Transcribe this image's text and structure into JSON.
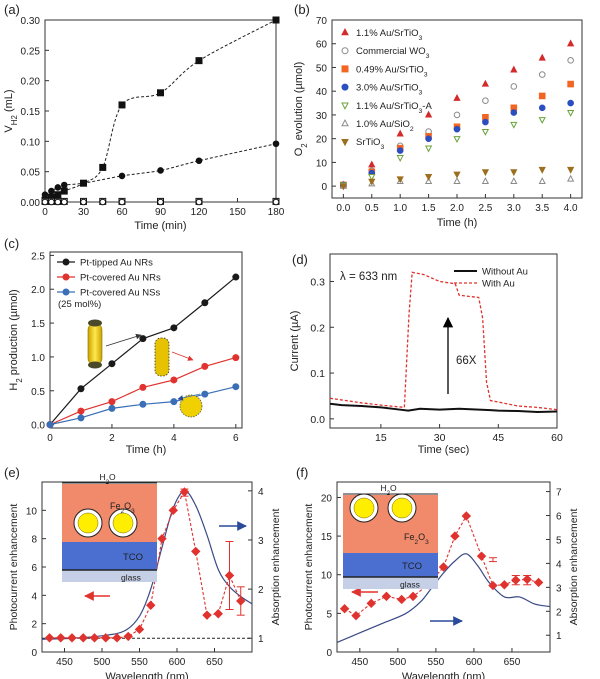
{
  "chart_data": [
    {
      "id": "a",
      "panel_label": "(a)",
      "type": "scatter",
      "xlabel": "Time (min)",
      "ylabel_main": "V",
      "ylabel_sub": "H2",
      "ylabel_unit": " (mL)",
      "xlim": [
        0,
        180
      ],
      "ylim": [
        0,
        0.3
      ],
      "xticks": [
        0,
        30,
        60,
        90,
        120,
        150,
        180
      ],
      "yticks": [
        0.0,
        0.05,
        0.1,
        0.15,
        0.2,
        0.25,
        0.3
      ],
      "ytick_labels": [
        "0.00",
        "0.05",
        "0.10",
        "0.15",
        "0.20",
        "0.25",
        "0.30"
      ],
      "series": [
        {
          "name": "squares",
          "marker": "square",
          "filled": true,
          "dashed": true,
          "x": [
            0,
            5,
            10,
            15,
            30,
            45,
            60,
            90,
            120,
            180
          ],
          "y": [
            0.003,
            0.008,
            0.012,
            0.018,
            0.031,
            0.057,
            0.16,
            0.18,
            0.233,
            0.3
          ]
        },
        {
          "name": "circles",
          "marker": "circle",
          "filled": true,
          "dashed": true,
          "x": [
            0,
            5,
            10,
            15,
            30,
            60,
            90,
            120,
            180
          ],
          "y": [
            0.012,
            0.018,
            0.024,
            0.028,
            0.031,
            0.043,
            0.052,
            0.068,
            0.096
          ]
        },
        {
          "name": "open squares",
          "marker": "square",
          "filled": false,
          "dashed": false,
          "x": [
            0,
            5,
            10,
            15,
            30,
            45,
            60,
            90,
            120,
            180
          ],
          "y": [
            0.001,
            0.001,
            0.001,
            0.001,
            0.001,
            0.001,
            0.001,
            0.001,
            0.001,
            0.001
          ]
        },
        {
          "name": "open circles",
          "marker": "circle",
          "filled": false,
          "dashed": false,
          "x": [
            0,
            5,
            10,
            15,
            30,
            45,
            60,
            90,
            120,
            180
          ],
          "y": [
            0.0,
            0.0,
            0.0,
            0.0,
            0.0,
            0.0,
            0.0,
            0.0,
            0.0,
            0.0
          ]
        }
      ]
    },
    {
      "id": "b",
      "panel_label": "(b)",
      "type": "scatter",
      "xlabel": "Time (h)",
      "ylabel_main": "O",
      "ylabel_sub": "2",
      "ylabel_unit": " evolution (µmol)",
      "xlim": [
        -0.2,
        4.2
      ],
      "ylim": [
        -5,
        70
      ],
      "xticks": [
        0.0,
        0.5,
        1.0,
        1.5,
        2.0,
        2.5,
        3.0,
        3.5,
        4.0
      ],
      "xtick_labels": [
        "0.0",
        "0.5",
        "1.0",
        "1.5",
        "2.0",
        "2.5",
        "3.0",
        "3.5",
        "4.0"
      ],
      "yticks": [
        0,
        10,
        20,
        30,
        40,
        50,
        60,
        70
      ],
      "x": [
        0.0,
        0.5,
        1.0,
        1.5,
        2.0,
        2.5,
        3.0,
        3.5,
        4.0
      ],
      "series": [
        {
          "name": "1.1% Au/SrTiO",
          "sub": "3",
          "suffix": "",
          "marker": "triangle-up",
          "color": "#d42a2a",
          "filled": true,
          "values": [
            0.5,
            9,
            22,
            30,
            37,
            43,
            49,
            54,
            60
          ]
        },
        {
          "name": "Commercial WO",
          "sub": "3",
          "suffix": "",
          "marker": "circle",
          "color": "#8a8a8a",
          "filled": false,
          "values": [
            0.5,
            6.5,
            17,
            23,
            30,
            36,
            42,
            47,
            53
          ]
        },
        {
          "name": "0.49% Au/SrTiO",
          "sub": "3",
          "suffix": "",
          "marker": "square",
          "color": "#f26522",
          "filled": true,
          "values": [
            0.5,
            6,
            16,
            21,
            25,
            29,
            33,
            38,
            43
          ]
        },
        {
          "name": "3.0% Au/SrTiO",
          "sub": "3",
          "suffix": "",
          "marker": "circle",
          "color": "#2b4fbf",
          "filled": true,
          "values": [
            0.5,
            5.5,
            15,
            20,
            24,
            27,
            31,
            33,
            35
          ]
        },
        {
          "name": "1.1% Au/SrTiO",
          "sub": "3",
          "suffix": "-A",
          "marker": "triangle-down",
          "color": "#6aa33a",
          "filled": false,
          "values": [
            0.5,
            4,
            12,
            16,
            20,
            23,
            26,
            28,
            31
          ]
        },
        {
          "name": "1.0% Au/SiO",
          "sub": "2",
          "suffix": "",
          "marker": "triangle-up",
          "color": "#8a8a8a",
          "filled": false,
          "values": [
            0,
            1,
            2,
            2,
            2,
            2,
            2,
            2,
            3
          ]
        },
        {
          "name": "SrTiO",
          "sub": "3",
          "suffix": "",
          "marker": "triangle-down",
          "color": "#9c6f1e",
          "filled": true,
          "values": [
            0,
            2,
            3,
            4,
            5,
            6,
            6,
            7,
            7
          ]
        }
      ]
    },
    {
      "id": "c",
      "panel_label": "(c)",
      "type": "line",
      "xlabel": "Time (h)",
      "ylabel_main": "H",
      "ylabel_sub": "2",
      "ylabel_unit": " production (µmol)",
      "xlim": [
        0,
        6.2
      ],
      "ylim": [
        -0.05,
        2.55
      ],
      "xticks": [
        0,
        2,
        4,
        6
      ],
      "yticks": [
        0.0,
        0.5,
        1.0,
        1.5,
        2.0,
        2.5
      ],
      "ytick_labels": [
        "0.0",
        "0.5",
        "1.0",
        "1.5",
        "2.0",
        "2.5"
      ],
      "x": [
        0,
        1,
        2,
        3,
        4,
        5,
        6
      ],
      "note": "(25 mol%)",
      "series": [
        {
          "name": "Pt-tipped Au NRs",
          "color": "#1a1a1a",
          "values": [
            0.0,
            0.53,
            0.9,
            1.27,
            1.43,
            1.8,
            2.18
          ]
        },
        {
          "name": "Pt-covered Au NRs",
          "color": "#e0322e",
          "values": [
            0.0,
            0.2,
            0.34,
            0.55,
            0.66,
            0.86,
            0.99
          ]
        },
        {
          "name": "Pt-covered Au NSs",
          "color": "#3a6fb7",
          "values": [
            0.0,
            0.1,
            0.24,
            0.3,
            0.34,
            0.45,
            0.56
          ]
        }
      ]
    },
    {
      "id": "d",
      "panel_label": "(d)",
      "type": "line",
      "xlabel": "Time (sec)",
      "ylabel_main": "Current (µA)",
      "xlim": [
        2,
        60
      ],
      "ylim": [
        -0.02,
        0.36
      ],
      "xticks": [
        15,
        30,
        45,
        60
      ],
      "yticks": [
        0.0,
        0.1,
        0.2,
        0.3
      ],
      "ytick_labels": [
        "0.0",
        "0.1",
        "0.2",
        "0.3"
      ],
      "lambda_label": "λ = 633 nm",
      "arrow_label": "66X",
      "series": [
        {
          "name": "Without Au",
          "color": "#111111",
          "dashed": false,
          "x": [
            2,
            5,
            10,
            15,
            20,
            22,
            25,
            30,
            35,
            40,
            43,
            45,
            50,
            55,
            60
          ],
          "y": [
            0.033,
            0.03,
            0.028,
            0.025,
            0.02,
            0.018,
            0.022,
            0.02,
            0.022,
            0.02,
            0.019,
            0.018,
            0.017,
            0.015,
            0.016
          ]
        },
        {
          "name": "With Au",
          "color": "#e0322e",
          "dashed": true,
          "x": [
            2,
            6,
            10,
            15,
            21,
            22.2,
            23,
            26,
            30,
            34,
            35,
            40,
            41,
            42,
            43,
            46,
            50,
            55,
            60
          ],
          "y": [
            0.045,
            0.04,
            0.035,
            0.03,
            0.025,
            0.23,
            0.32,
            0.315,
            0.3,
            0.295,
            0.27,
            0.265,
            0.22,
            0.08,
            0.04,
            0.035,
            0.028,
            0.025,
            0.02
          ]
        }
      ]
    },
    {
      "id": "e",
      "panel_label": "(e)",
      "type": "line",
      "xlabel": "Wavelength (nm)",
      "ylabel_left": "Photocurrent enhancement",
      "ylabel_right": "Absorption enhancement",
      "xlim": [
        420,
        700
      ],
      "ylim_left": [
        0,
        12
      ],
      "ylim_right": [
        0.72,
        4.18
      ],
      "xticks": [
        450,
        500,
        550,
        600,
        650
      ],
      "yticks_left": [
        0,
        2,
        4,
        6,
        8,
        10
      ],
      "yticks_right": [
        1,
        2,
        3,
        4
      ],
      "photocurrent": {
        "x": [
          430,
          445,
          460,
          475,
          490,
          505,
          520,
          535,
          550,
          565,
          580,
          595,
          610,
          625,
          640,
          655,
          670,
          685
        ],
        "y": [
          1.0,
          1.0,
          1.0,
          1.0,
          1.0,
          1.0,
          1.0,
          1.1,
          1.6,
          3.3,
          8.0,
          10.0,
          11.3,
          7.1,
          2.6,
          2.7,
          5.4,
          3.6
        ]
      },
      "absorption": {
        "x": [
          420,
          460,
          500,
          530,
          550,
          565,
          580,
          595,
          610,
          625,
          640,
          655,
          670,
          685,
          700
        ],
        "y": [
          0.98,
          1.0,
          1.05,
          1.15,
          1.45,
          2.0,
          2.85,
          3.65,
          4.0,
          3.7,
          3.1,
          2.4,
          2.05,
          1.85,
          1.7
        ]
      },
      "layer_labels": {
        "h2o": "H",
        "h2o_sub": "2",
        "h2o_end": "O",
        "fe": "Fe",
        "fe_sub": "2",
        "fe_mid": "O",
        "fe_sub2": "3",
        "tco": "TCO",
        "glass": "glass"
      }
    },
    {
      "id": "f",
      "panel_label": "(f)",
      "type": "line",
      "xlabel": "Wavelength (nm)",
      "ylabel_left": "Photocurrent enhancement",
      "ylabel_right": "Absorption enhancement",
      "xlim": [
        420,
        700
      ],
      "ylim_left": [
        0,
        22
      ],
      "ylim_right": [
        0.3,
        7.4
      ],
      "xticks": [
        450,
        500,
        550,
        600,
        650
      ],
      "yticks_left": [
        0,
        5,
        10,
        15,
        20
      ],
      "yticks_right": [
        1,
        2,
        3,
        4,
        5,
        6,
        7
      ],
      "photocurrent": {
        "x": [
          430,
          445,
          465,
          485,
          505,
          520,
          540,
          560,
          575,
          590,
          610,
          625,
          640,
          655,
          670,
          685
        ],
        "y": [
          5.6,
          4.7,
          6.3,
          7.2,
          6.8,
          7.2,
          8.7,
          11.0,
          15.0,
          17.6,
          12.4,
          8.6,
          8.7,
          9.3,
          9.4,
          9.0
        ]
      },
      "absorption": {
        "x": [
          420,
          450,
          480,
          510,
          530,
          545,
          560,
          575,
          590,
          605,
          620,
          640,
          660,
          680,
          700
        ],
        "y": [
          0.7,
          1.1,
          1.5,
          1.9,
          2.4,
          3.0,
          3.6,
          4.1,
          4.4,
          3.9,
          3.2,
          2.6,
          2.6,
          2.3,
          2.2
        ]
      },
      "layer_labels": {
        "h2o": "H",
        "h2o_sub": "2",
        "h2o_end": "O",
        "fe": "Fe",
        "fe_sub": "2",
        "fe_mid": "O",
        "fe_sub2": "3",
        "tco": "TCO",
        "glass": "glass"
      }
    }
  ]
}
